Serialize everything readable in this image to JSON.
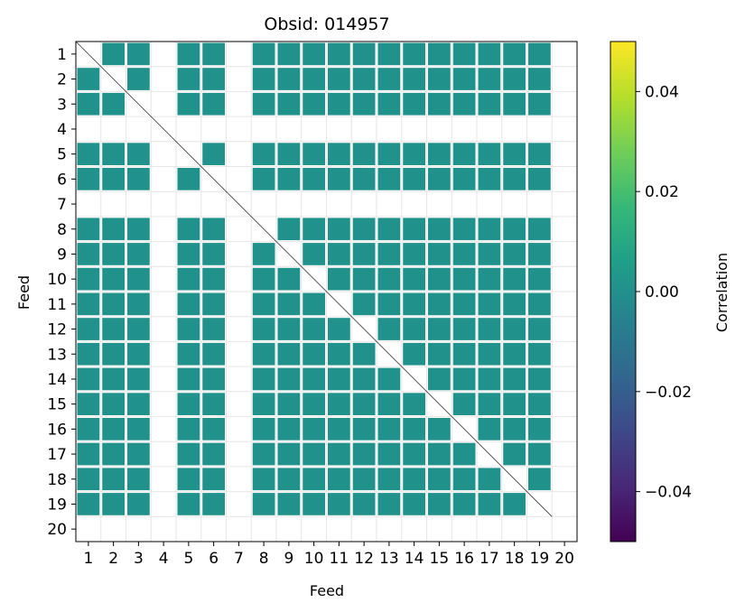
{
  "chart_data": {
    "type": "heatmap",
    "title": "Obsid: 014957",
    "xlabel": "Feed",
    "ylabel": "Feed",
    "x_ticks": [
      "1",
      "2",
      "3",
      "4",
      "5",
      "6",
      "7",
      "8",
      "9",
      "10",
      "11",
      "12",
      "13",
      "14",
      "15",
      "16",
      "17",
      "18",
      "19",
      "20"
    ],
    "y_ticks": [
      "1",
      "2",
      "3",
      "4",
      "5",
      "6",
      "7",
      "8",
      "9",
      "10",
      "11",
      "12",
      "13",
      "14",
      "15",
      "16",
      "17",
      "18",
      "19",
      "20"
    ],
    "feeds": 20,
    "masked_feeds": [
      4,
      7,
      20
    ],
    "fill_value": 0.0,
    "fill_color": "#21918c",
    "diagonal": "masked",
    "colorbar": {
      "label": "Correlation",
      "cmap": "viridis",
      "vmin": -0.05,
      "vmax": 0.05,
      "ticks": [
        0.04,
        0.02,
        0.0,
        -0.02,
        -0.04
      ],
      "tick_labels": [
        "0.04",
        "0.02",
        "0.00",
        "−0.02",
        "−0.04"
      ],
      "colors": [
        "#440154",
        "#482878",
        "#3e4989",
        "#31688e",
        "#26828e",
        "#1f9e89",
        "#35b779",
        "#6ece58",
        "#b5de2b",
        "#fde725"
      ]
    }
  }
}
